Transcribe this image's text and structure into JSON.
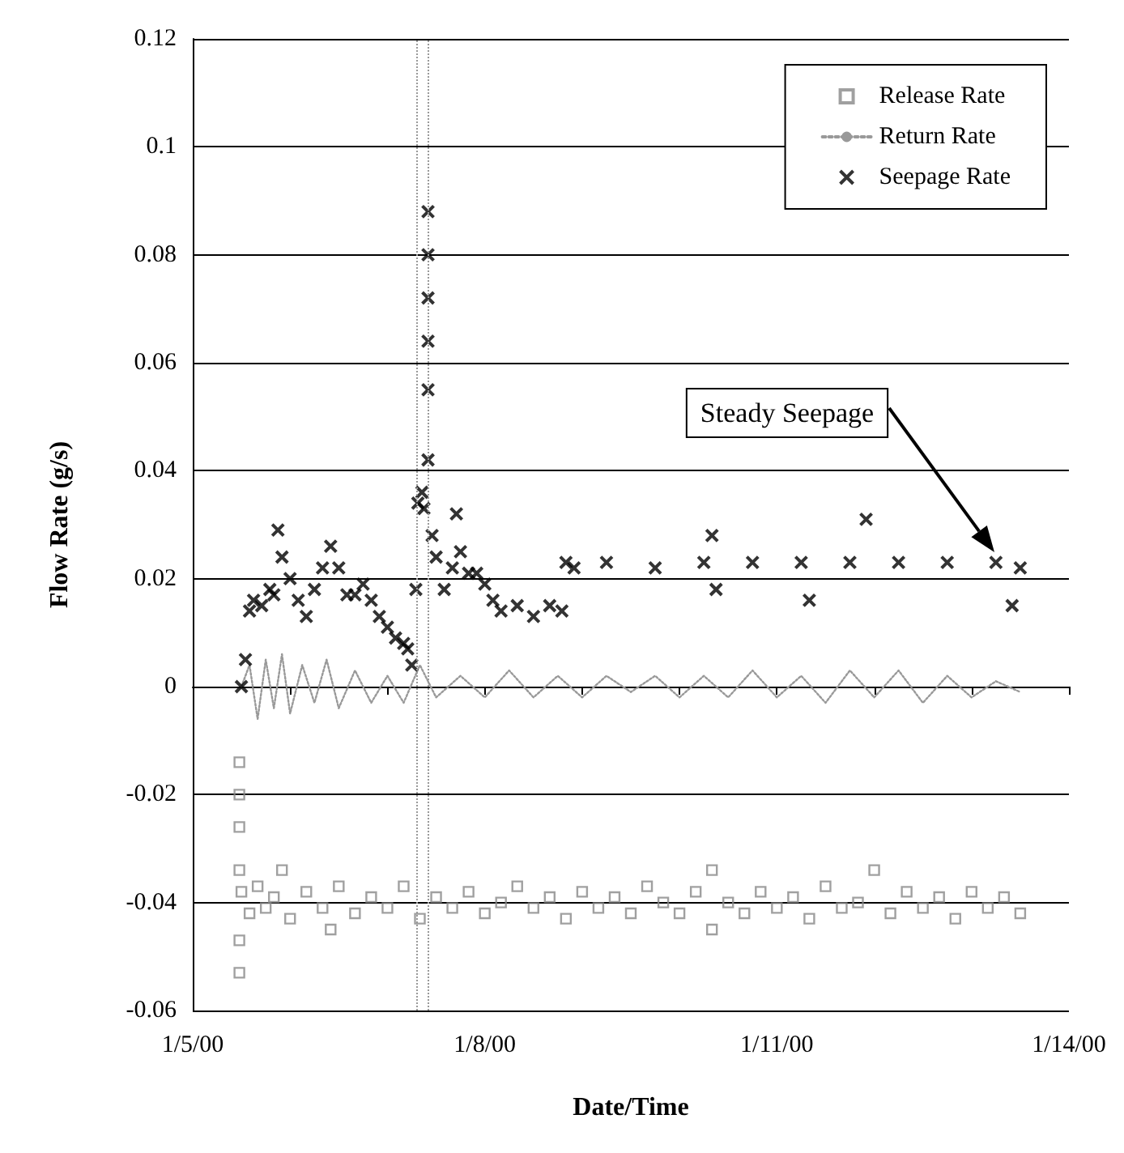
{
  "chart_data": {
    "type": "scatter",
    "xlabel": "Date/Time",
    "ylabel": "Flow Rate (g/s)",
    "xlim": [
      "2000-01-05",
      "2000-01-14"
    ],
    "xticks": [
      {
        "value": "2000-01-05",
        "label": "1/5/00"
      },
      {
        "value": "2000-01-06",
        "label": null
      },
      {
        "value": "2000-01-07",
        "label": null
      },
      {
        "value": "2000-01-08",
        "label": "1/8/00"
      },
      {
        "value": "2000-01-09",
        "label": null
      },
      {
        "value": "2000-01-10",
        "label": null
      },
      {
        "value": "2000-01-11",
        "label": "1/11/00"
      },
      {
        "value": "2000-01-12",
        "label": null
      },
      {
        "value": "2000-01-13",
        "label": null
      },
      {
        "value": "2000-01-14",
        "label": "1/14/00"
      }
    ],
    "ylim": [
      -0.06,
      0.12
    ],
    "yticks": [
      -0.06,
      -0.04,
      -0.02,
      0,
      0.02,
      0.04,
      0.06,
      0.08,
      0.1,
      0.12
    ],
    "grid": "y",
    "legend": "top right",
    "ref_lines": [
      {
        "axis": "x",
        "value": "2000-01-07T07:00",
        "color": "#999999",
        "line_style": "dotted"
      },
      {
        "axis": "x",
        "value": "2000-01-07T10:00",
        "color": "#999999",
        "line_style": "dotted"
      }
    ],
    "annotations": [
      "Steady Seepage"
    ],
    "series": [
      {
        "name": "Release Rate",
        "marker": "square",
        "color": "#888888",
        "x": [
          "2000-01-05T11:30",
          "2000-01-05T11:30",
          "2000-01-05T11:30",
          "2000-01-05T11:30",
          "2000-01-05T11:30",
          "2000-01-05T11:30",
          "2000-01-05T12:00",
          "2000-01-05T14:00",
          "2000-01-05T16:00",
          "2000-01-05T18:00",
          "2000-01-05T20:00",
          "2000-01-05T22:00",
          "2000-01-06T00:00",
          "2000-01-06T04:00",
          "2000-01-06T08:00",
          "2000-01-06T10:00",
          "2000-01-06T12:00",
          "2000-01-06T16:00",
          "2000-01-06T20:00",
          "2000-01-07T00:00",
          "2000-01-07T04:00",
          "2000-01-07T08:00",
          "2000-01-07T12:00",
          "2000-01-07T16:00",
          "2000-01-07T20:00",
          "2000-01-08T00:00",
          "2000-01-08T04:00",
          "2000-01-08T08:00",
          "2000-01-08T12:00",
          "2000-01-08T16:00",
          "2000-01-08T20:00",
          "2000-01-09T00:00",
          "2000-01-09T04:00",
          "2000-01-09T08:00",
          "2000-01-09T12:00",
          "2000-01-09T16:00",
          "2000-01-09T20:00",
          "2000-01-10T00:00",
          "2000-01-10T04:00",
          "2000-01-10T08:00",
          "2000-01-10T08:00",
          "2000-01-10T12:00",
          "2000-01-10T16:00",
          "2000-01-10T20:00",
          "2000-01-11T00:00",
          "2000-01-11T04:00",
          "2000-01-11T08:00",
          "2000-01-11T12:00",
          "2000-01-11T16:00",
          "2000-01-11T20:00",
          "2000-01-12T00:00",
          "2000-01-12T04:00",
          "2000-01-12T08:00",
          "2000-01-12T12:00",
          "2000-01-12T16:00",
          "2000-01-12T20:00",
          "2000-01-13T00:00",
          "2000-01-13T04:00",
          "2000-01-13T08:00",
          "2000-01-13T12:00"
        ],
        "values": [
          -0.014,
          -0.02,
          -0.026,
          -0.034,
          -0.047,
          -0.053,
          -0.038,
          -0.042,
          -0.037,
          -0.041,
          -0.039,
          -0.034,
          -0.043,
          -0.038,
          -0.041,
          -0.045,
          -0.037,
          -0.042,
          -0.039,
          -0.041,
          -0.037,
          -0.043,
          -0.039,
          -0.041,
          -0.038,
          -0.042,
          -0.04,
          -0.037,
          -0.041,
          -0.039,
          -0.043,
          -0.038,
          -0.041,
          -0.039,
          -0.042,
          -0.037,
          -0.04,
          -0.042,
          -0.038,
          -0.034,
          -0.045,
          -0.04,
          -0.042,
          -0.038,
          -0.041,
          -0.039,
          -0.043,
          -0.037,
          -0.041,
          -0.04,
          -0.034,
          -0.042,
          -0.038,
          -0.041,
          -0.039,
          -0.043,
          -0.038,
          -0.041,
          -0.039,
          -0.042
        ]
      },
      {
        "name": "Return Rate",
        "type": "line",
        "marker": "none",
        "line_style": "dotted",
        "color": "#999999",
        "x": [
          "2000-01-05T12:00",
          "2000-01-05T14:00",
          "2000-01-05T16:00",
          "2000-01-05T18:00",
          "2000-01-05T20:00",
          "2000-01-05T22:00",
          "2000-01-06T00:00",
          "2000-01-06T03:00",
          "2000-01-06T06:00",
          "2000-01-06T09:00",
          "2000-01-06T12:00",
          "2000-01-06T16:00",
          "2000-01-06T20:00",
          "2000-01-07T00:00",
          "2000-01-07T04:00",
          "2000-01-07T08:00",
          "2000-01-07T12:00",
          "2000-01-07T18:00",
          "2000-01-08T00:00",
          "2000-01-08T06:00",
          "2000-01-08T12:00",
          "2000-01-08T18:00",
          "2000-01-09T00:00",
          "2000-01-09T06:00",
          "2000-01-09T12:00",
          "2000-01-09T18:00",
          "2000-01-10T00:00",
          "2000-01-10T06:00",
          "2000-01-10T12:00",
          "2000-01-10T18:00",
          "2000-01-11T00:00",
          "2000-01-11T06:00",
          "2000-01-11T12:00",
          "2000-01-11T18:00",
          "2000-01-12T00:00",
          "2000-01-12T06:00",
          "2000-01-12T12:00",
          "2000-01-12T18:00",
          "2000-01-13T00:00",
          "2000-01-13T06:00",
          "2000-01-13T12:00"
        ],
        "values": [
          0,
          0.004,
          -0.006,
          0.005,
          -0.004,
          0.006,
          -0.005,
          0.004,
          -0.003,
          0.005,
          -0.004,
          0.003,
          -0.003,
          0.002,
          -0.003,
          0.004,
          -0.002,
          0.002,
          -0.002,
          0.003,
          -0.002,
          0.002,
          -0.002,
          0.002,
          -0.001,
          0.002,
          -0.002,
          0.002,
          -0.002,
          0.003,
          -0.002,
          0.002,
          -0.003,
          0.003,
          -0.002,
          0.003,
          -0.003,
          0.002,
          -0.002,
          0.001,
          -0.001
        ]
      },
      {
        "name": "Seepage Rate",
        "marker": "cross",
        "color": "#000000",
        "x": [
          "2000-01-05T12:00",
          "2000-01-05T13:00",
          "2000-01-05T14:00",
          "2000-01-05T15:00",
          "2000-01-05T17:00",
          "2000-01-05T19:00",
          "2000-01-05T20:00",
          "2000-01-05T21:00",
          "2000-01-05T22:00",
          "2000-01-06T00:00",
          "2000-01-06T02:00",
          "2000-01-06T04:00",
          "2000-01-06T06:00",
          "2000-01-06T08:00",
          "2000-01-06T10:00",
          "2000-01-06T12:00",
          "2000-01-06T14:00",
          "2000-01-06T16:00",
          "2000-01-06T18:00",
          "2000-01-06T20:00",
          "2000-01-06T22:00",
          "2000-01-07T00:00",
          "2000-01-07T02:00",
          "2000-01-07T04:00",
          "2000-01-07T05:00",
          "2000-01-07T06:00",
          "2000-01-07T07:00",
          "2000-01-07T07:30",
          "2000-01-07T08:30",
          "2000-01-07T09:00",
          "2000-01-07T10:00",
          "2000-01-07T10:00",
          "2000-01-07T10:00",
          "2000-01-07T10:00",
          "2000-01-07T10:00",
          "2000-01-07T10:00",
          "2000-01-07T11:00",
          "2000-01-07T12:00",
          "2000-01-07T14:00",
          "2000-01-07T16:00",
          "2000-01-07T17:00",
          "2000-01-07T18:00",
          "2000-01-07T20:00",
          "2000-01-07T22:00",
          "2000-01-08T00:00",
          "2000-01-08T02:00",
          "2000-01-08T04:00",
          "2000-01-08T08:00",
          "2000-01-08T12:00",
          "2000-01-08T16:00",
          "2000-01-08T19:00",
          "2000-01-08T20:00",
          "2000-01-08T22:00",
          "2000-01-09T06:00",
          "2000-01-09T18:00",
          "2000-01-10T06:00",
          "2000-01-10T08:00",
          "2000-01-10T09:00",
          "2000-01-10T18:00",
          "2000-01-11T06:00",
          "2000-01-11T08:00",
          "2000-01-11T18:00",
          "2000-01-11T22:00",
          "2000-01-12T06:00",
          "2000-01-12T18:00",
          "2000-01-13T06:00",
          "2000-01-13T10:00",
          "2000-01-13T12:00"
        ],
        "values": [
          0,
          0.005,
          0.014,
          0.016,
          0.015,
          0.018,
          0.017,
          0.029,
          0.024,
          0.02,
          0.016,
          0.013,
          0.018,
          0.022,
          0.026,
          0.022,
          0.017,
          0.017,
          0.019,
          0.016,
          0.013,
          0.011,
          0.009,
          0.008,
          0.007,
          0.004,
          0.018,
          0.034,
          0.036,
          0.033,
          0.088,
          0.08,
          0.072,
          0.064,
          0.055,
          0.042,
          0.028,
          0.024,
          0.018,
          0.022,
          0.032,
          0.025,
          0.021,
          0.021,
          0.019,
          0.016,
          0.014,
          0.015,
          0.013,
          0.015,
          0.014,
          0.023,
          0.022,
          0.023,
          0.022,
          0.023,
          0.028,
          0.018,
          0.023,
          0.023,
          0.016,
          0.023,
          0.031,
          0.023,
          0.023,
          0.023,
          0.015,
          0.022
        ]
      }
    ]
  }
}
